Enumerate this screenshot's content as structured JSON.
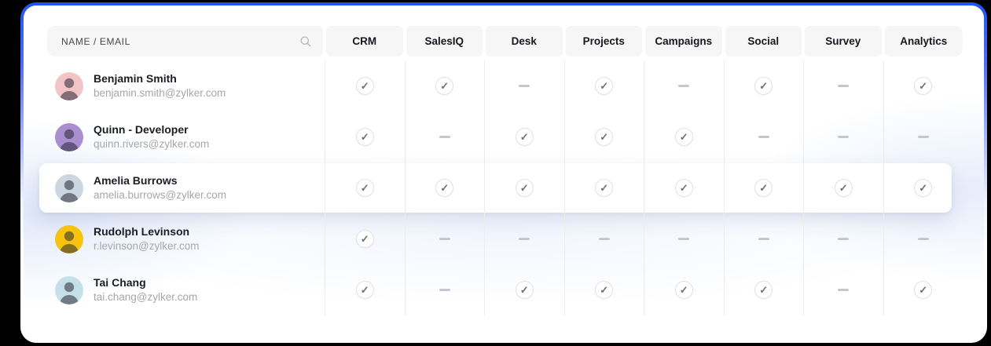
{
  "panel": {
    "border_accent_color": "#2253f1",
    "background_color": "#000000"
  },
  "icons": {
    "check_glyph": "✓",
    "search_icon": "magnifier",
    "dash_icon": "minus"
  },
  "table": {
    "header": {
      "name_label": "NAME / EMAIL",
      "columns": [
        "CRM",
        "SalesIQ",
        "Desk",
        "Projects",
        "Campaigns",
        "Social",
        "Survey",
        "Analytics"
      ]
    },
    "rows": [
      {
        "name": "Benjamin Smith",
        "email": "benjamin.smith@zylker.com",
        "avatar_color": "#f2c3c7",
        "highlighted": false,
        "access": [
          true,
          true,
          false,
          true,
          false,
          true,
          false,
          true
        ]
      },
      {
        "name": "Quinn - Developer",
        "email": "quinn.rivers@zylker.com",
        "avatar_color": "#a98fd0",
        "highlighted": false,
        "access": [
          true,
          false,
          true,
          true,
          true,
          false,
          false,
          false
        ]
      },
      {
        "name": "Amelia Burrows",
        "email": "amelia.burrows@zylker.com",
        "avatar_color": "#ccd6de",
        "highlighted": true,
        "access": [
          true,
          true,
          true,
          true,
          true,
          true,
          true,
          true
        ]
      },
      {
        "name": "Rudolph Levinson",
        "email": "r.levinson@zylker.com",
        "avatar_color": "#f6c40e",
        "highlighted": false,
        "access": [
          true,
          false,
          false,
          false,
          false,
          false,
          false,
          false
        ]
      },
      {
        "name": "Tai Chang",
        "email": "tai.chang@zylker.com",
        "avatar_color": "#c5e0e8",
        "highlighted": false,
        "access": [
          true,
          false,
          true,
          true,
          true,
          true,
          false,
          true
        ]
      }
    ]
  }
}
